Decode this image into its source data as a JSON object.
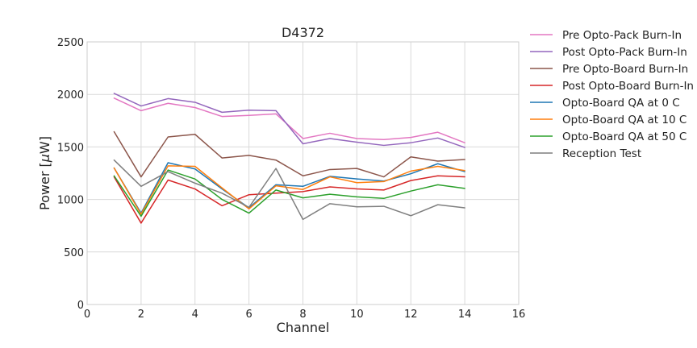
{
  "chart_data": {
    "type": "line",
    "title": "D4372",
    "xlabel": "Channel",
    "ylabel_prefix": "Power [",
    "ylabel_unit": "μ",
    "ylabel_suffix": "W]",
    "xlim": [
      0,
      16
    ],
    "ylim": [
      0,
      2500
    ],
    "xticks": [
      0,
      2,
      4,
      6,
      8,
      10,
      12,
      14,
      16
    ],
    "yticks": [
      0,
      500,
      1000,
      1500,
      2000,
      2500
    ],
    "grid": true,
    "legend_position": "outside-right",
    "x": [
      1,
      2,
      3,
      4,
      5,
      6,
      7,
      8,
      9,
      10,
      11,
      12,
      13,
      14
    ],
    "series": [
      {
        "name": "Pre Opto-Pack Burn-In",
        "color": "#e377c2",
        "values": [
          1965,
          1845,
          1915,
          1875,
          1790,
          1800,
          1815,
          1580,
          1630,
          1580,
          1570,
          1590,
          1640,
          1540
        ]
      },
      {
        "name": "Post Opto-Pack Burn-In",
        "color": "#9467bd",
        "values": [
          2010,
          1890,
          1960,
          1925,
          1830,
          1850,
          1845,
          1530,
          1580,
          1545,
          1515,
          1540,
          1585,
          1495
        ]
      },
      {
        "name": "Pre Opto-Board Burn-In",
        "color": "#8c564b",
        "values": [
          1645,
          1215,
          1595,
          1620,
          1395,
          1420,
          1375,
          1225,
          1285,
          1295,
          1215,
          1405,
          1365,
          1380
        ]
      },
      {
        "name": "Post Opto-Board Burn-In",
        "color": "#d62728",
        "values": [
          1215,
          775,
          1185,
          1100,
          940,
          1045,
          1060,
          1075,
          1120,
          1100,
          1090,
          1180,
          1225,
          1215
        ]
      },
      {
        "name": "Opto-Board QA at 0 C",
        "color": "#1f77b4",
        "values": [
          1300,
          870,
          1350,
          1290,
          1100,
          920,
          1140,
          1125,
          1220,
          1195,
          1175,
          1245,
          1340,
          1265
        ]
      },
      {
        "name": "Opto-Board QA at 10 C",
        "color": "#ff7f0e",
        "values": [
          1300,
          860,
          1320,
          1315,
          1110,
          910,
          1130,
          1095,
          1215,
          1160,
          1170,
          1270,
          1315,
          1275
        ]
      },
      {
        "name": "Opto-Board QA at 50 C",
        "color": "#2ca02c",
        "values": [
          1225,
          840,
          1280,
          1195,
          1000,
          870,
          1090,
          1015,
          1050,
          1025,
          1010,
          1080,
          1140,
          1105
        ]
      },
      {
        "name": "Reception Test",
        "color": "#7f7f7f",
        "values": [
          1375,
          1125,
          1265,
          1155,
          1060,
          925,
          1295,
          810,
          960,
          930,
          935,
          845,
          950,
          920
        ]
      }
    ]
  }
}
